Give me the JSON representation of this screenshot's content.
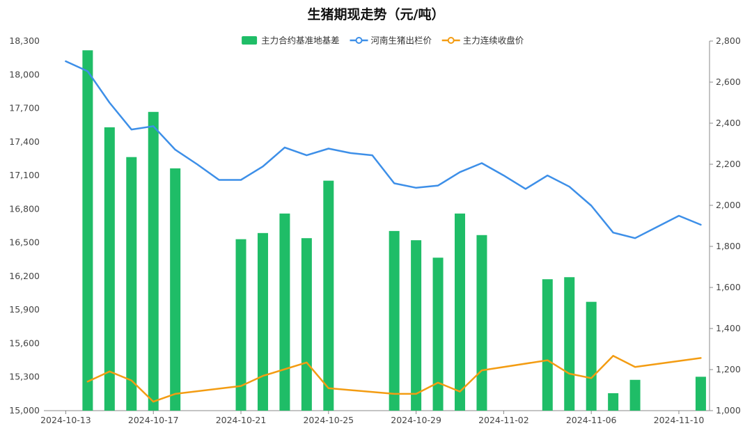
{
  "chart_data": {
    "type": "bar",
    "title": "生猪期现走势（元/吨）",
    "x_ticks": [
      "2024-10-13",
      "2024-10-17",
      "2024-10-21",
      "2024-10-25",
      "2024-10-29",
      "2024-11-02",
      "2024-11-06",
      "2024-11-10"
    ],
    "y_left": {
      "min": 15000,
      "max": 18300,
      "ticks": [
        "15,000",
        "15,300",
        "15,600",
        "15,900",
        "16,200",
        "16,500",
        "16,800",
        "17,100",
        "17,400",
        "17,700",
        "18,000",
        "18,300"
      ]
    },
    "y_right": {
      "min": 1000,
      "max": 2800,
      "ticks": [
        "1,000",
        "1,200",
        "1,400",
        "1,600",
        "1,800",
        "2,000",
        "2,200",
        "2,400",
        "2,600",
        "2,800"
      ]
    },
    "legend_position": "top-center",
    "grid": false,
    "series": [
      {
        "name": "主力合约基准地基差",
        "type": "bar",
        "axis": "right",
        "color": "#1fbd67",
        "points": [
          [
            "2024-10-14",
            2755
          ],
          [
            "2024-10-15",
            2380
          ],
          [
            "2024-10-16",
            2235
          ],
          [
            "2024-10-17",
            2455
          ],
          [
            "2024-10-18",
            2180
          ],
          [
            "2024-10-21",
            1835
          ],
          [
            "2024-10-22",
            1865
          ],
          [
            "2024-10-23",
            1960
          ],
          [
            "2024-10-24",
            1840
          ],
          [
            "2024-10-25",
            2120
          ],
          [
            "2024-10-28",
            1875
          ],
          [
            "2024-10-29",
            1830
          ],
          [
            "2024-10-30",
            1745
          ],
          [
            "2024-10-31",
            1960
          ],
          [
            "2024-11-01",
            1855
          ],
          [
            "2024-11-04",
            1640
          ],
          [
            "2024-11-05",
            1650
          ],
          [
            "2024-11-06",
            1530
          ],
          [
            "2024-11-07",
            1085
          ],
          [
            "2024-11-08",
            1150
          ],
          [
            "2024-11-11",
            1165
          ]
        ]
      },
      {
        "name": "河南生猪出栏价",
        "type": "line",
        "axis": "left",
        "color": "#3d8fe8",
        "points": [
          [
            "2024-10-13",
            18120
          ],
          [
            "2024-10-14",
            18030
          ],
          [
            "2024-10-15",
            17750
          ],
          [
            "2024-10-16",
            17510
          ],
          [
            "2024-10-17",
            17540
          ],
          [
            "2024-10-18",
            17330
          ],
          [
            "2024-10-19",
            17200
          ],
          [
            "2024-10-20",
            17060
          ],
          [
            "2024-10-21",
            17060
          ],
          [
            "2024-10-22",
            17180
          ],
          [
            "2024-10-23",
            17350
          ],
          [
            "2024-10-24",
            17280
          ],
          [
            "2024-10-25",
            17340
          ],
          [
            "2024-10-26",
            17300
          ],
          [
            "2024-10-27",
            17280
          ],
          [
            "2024-10-28",
            17030
          ],
          [
            "2024-10-29",
            16990
          ],
          [
            "2024-10-30",
            17010
          ],
          [
            "2024-10-31",
            17130
          ],
          [
            "2024-11-01",
            17210
          ],
          [
            "2024-11-02",
            17100
          ],
          [
            "2024-11-03",
            16980
          ],
          [
            "2024-11-04",
            17100
          ],
          [
            "2024-11-05",
            17000
          ],
          [
            "2024-11-06",
            16830
          ],
          [
            "2024-11-07",
            16590
          ],
          [
            "2024-11-08",
            16540
          ],
          [
            "2024-11-09",
            16640
          ],
          [
            "2024-11-10",
            16740
          ],
          [
            "2024-11-11",
            16660
          ]
        ]
      },
      {
        "name": "主力连续收盘价",
        "type": "line",
        "axis": "left",
        "color": "#f39c12",
        "points": [
          [
            "2024-10-14",
            15260
          ],
          [
            "2024-10-15",
            15350
          ],
          [
            "2024-10-16",
            15270
          ],
          [
            "2024-10-17",
            15080
          ],
          [
            "2024-10-18",
            15150
          ],
          [
            "2024-10-21",
            15220
          ],
          [
            "2024-10-22",
            15310
          ],
          [
            "2024-10-23",
            15370
          ],
          [
            "2024-10-24",
            15430
          ],
          [
            "2024-10-25",
            15200
          ],
          [
            "2024-10-28",
            15150
          ],
          [
            "2024-10-29",
            15150
          ],
          [
            "2024-10-30",
            15250
          ],
          [
            "2024-10-31",
            15170
          ],
          [
            "2024-11-01",
            15360
          ],
          [
            "2024-11-04",
            15450
          ],
          [
            "2024-11-05",
            15330
          ],
          [
            "2024-11-06",
            15290
          ],
          [
            "2024-11-07",
            15490
          ],
          [
            "2024-11-08",
            15390
          ],
          [
            "2024-11-11",
            15470
          ]
        ]
      }
    ]
  }
}
